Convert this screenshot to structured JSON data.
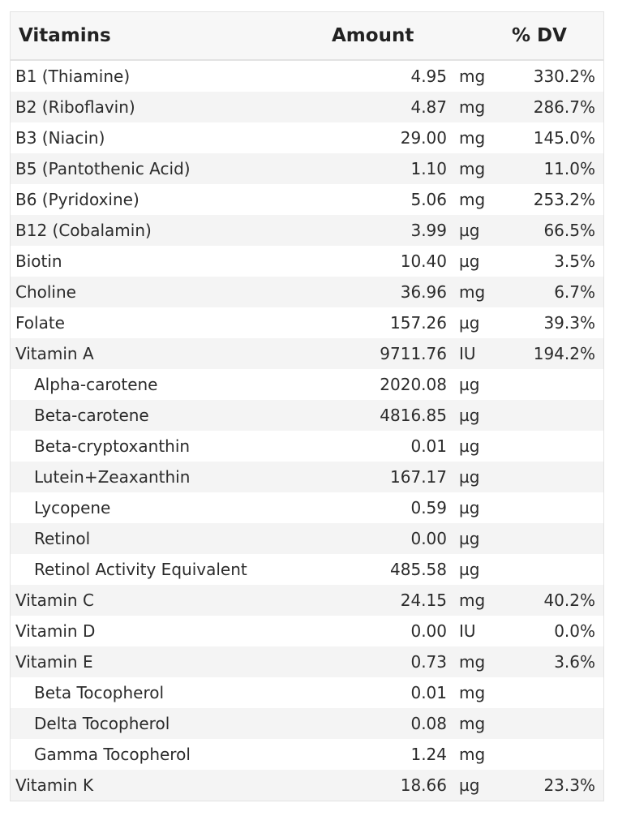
{
  "header": {
    "name": "Vitamins",
    "amount": "Amount",
    "dv": "% DV"
  },
  "rows": [
    {
      "name": "B1 (Thiamine)",
      "amount": "4.95",
      "unit": "mg",
      "dv": "330.2%",
      "sub": false
    },
    {
      "name": "B2 (Riboflavin)",
      "amount": "4.87",
      "unit": "mg",
      "dv": "286.7%",
      "sub": false
    },
    {
      "name": "B3 (Niacin)",
      "amount": "29.00",
      "unit": "mg",
      "dv": "145.0%",
      "sub": false
    },
    {
      "name": "B5 (Pantothenic Acid)",
      "amount": "1.10",
      "unit": "mg",
      "dv": "11.0%",
      "sub": false
    },
    {
      "name": "B6 (Pyridoxine)",
      "amount": "5.06",
      "unit": "mg",
      "dv": "253.2%",
      "sub": false
    },
    {
      "name": "B12 (Cobalamin)",
      "amount": "3.99",
      "unit": "µg",
      "dv": "66.5%",
      "sub": false
    },
    {
      "name": "Biotin",
      "amount": "10.40",
      "unit": "µg",
      "dv": "3.5%",
      "sub": false
    },
    {
      "name": "Choline",
      "amount": "36.96",
      "unit": "mg",
      "dv": "6.7%",
      "sub": false
    },
    {
      "name": "Folate",
      "amount": "157.26",
      "unit": "µg",
      "dv": "39.3%",
      "sub": false
    },
    {
      "name": "Vitamin A",
      "amount": "9711.76",
      "unit": "IU",
      "dv": "194.2%",
      "sub": false
    },
    {
      "name": "Alpha-carotene",
      "amount": "2020.08",
      "unit": "µg",
      "dv": "",
      "sub": true
    },
    {
      "name": "Beta-carotene",
      "amount": "4816.85",
      "unit": "µg",
      "dv": "",
      "sub": true
    },
    {
      "name": "Beta-cryptoxanthin",
      "amount": "0.01",
      "unit": "µg",
      "dv": "",
      "sub": true
    },
    {
      "name": "Lutein+Zeaxanthin",
      "amount": "167.17",
      "unit": "µg",
      "dv": "",
      "sub": true
    },
    {
      "name": "Lycopene",
      "amount": "0.59",
      "unit": "µg",
      "dv": "",
      "sub": true
    },
    {
      "name": "Retinol",
      "amount": "0.00",
      "unit": "µg",
      "dv": "",
      "sub": true
    },
    {
      "name": "Retinol Activity Equivalent",
      "amount": "485.58",
      "unit": "µg",
      "dv": "",
      "sub": true
    },
    {
      "name": "Vitamin C",
      "amount": "24.15",
      "unit": "mg",
      "dv": "40.2%",
      "sub": false
    },
    {
      "name": "Vitamin D",
      "amount": "0.00",
      "unit": "IU",
      "dv": "0.0%",
      "sub": false
    },
    {
      "name": "Vitamin E",
      "amount": "0.73",
      "unit": "mg",
      "dv": "3.6%",
      "sub": false
    },
    {
      "name": "Beta Tocopherol",
      "amount": "0.01",
      "unit": "mg",
      "dv": "",
      "sub": true
    },
    {
      "name": "Delta Tocopherol",
      "amount": "0.08",
      "unit": "mg",
      "dv": "",
      "sub": true
    },
    {
      "name": "Gamma Tocopherol",
      "amount": "1.24",
      "unit": "mg",
      "dv": "",
      "sub": true
    },
    {
      "name": "Vitamin K",
      "amount": "18.66",
      "unit": "µg",
      "dv": "23.3%",
      "sub": false
    }
  ]
}
